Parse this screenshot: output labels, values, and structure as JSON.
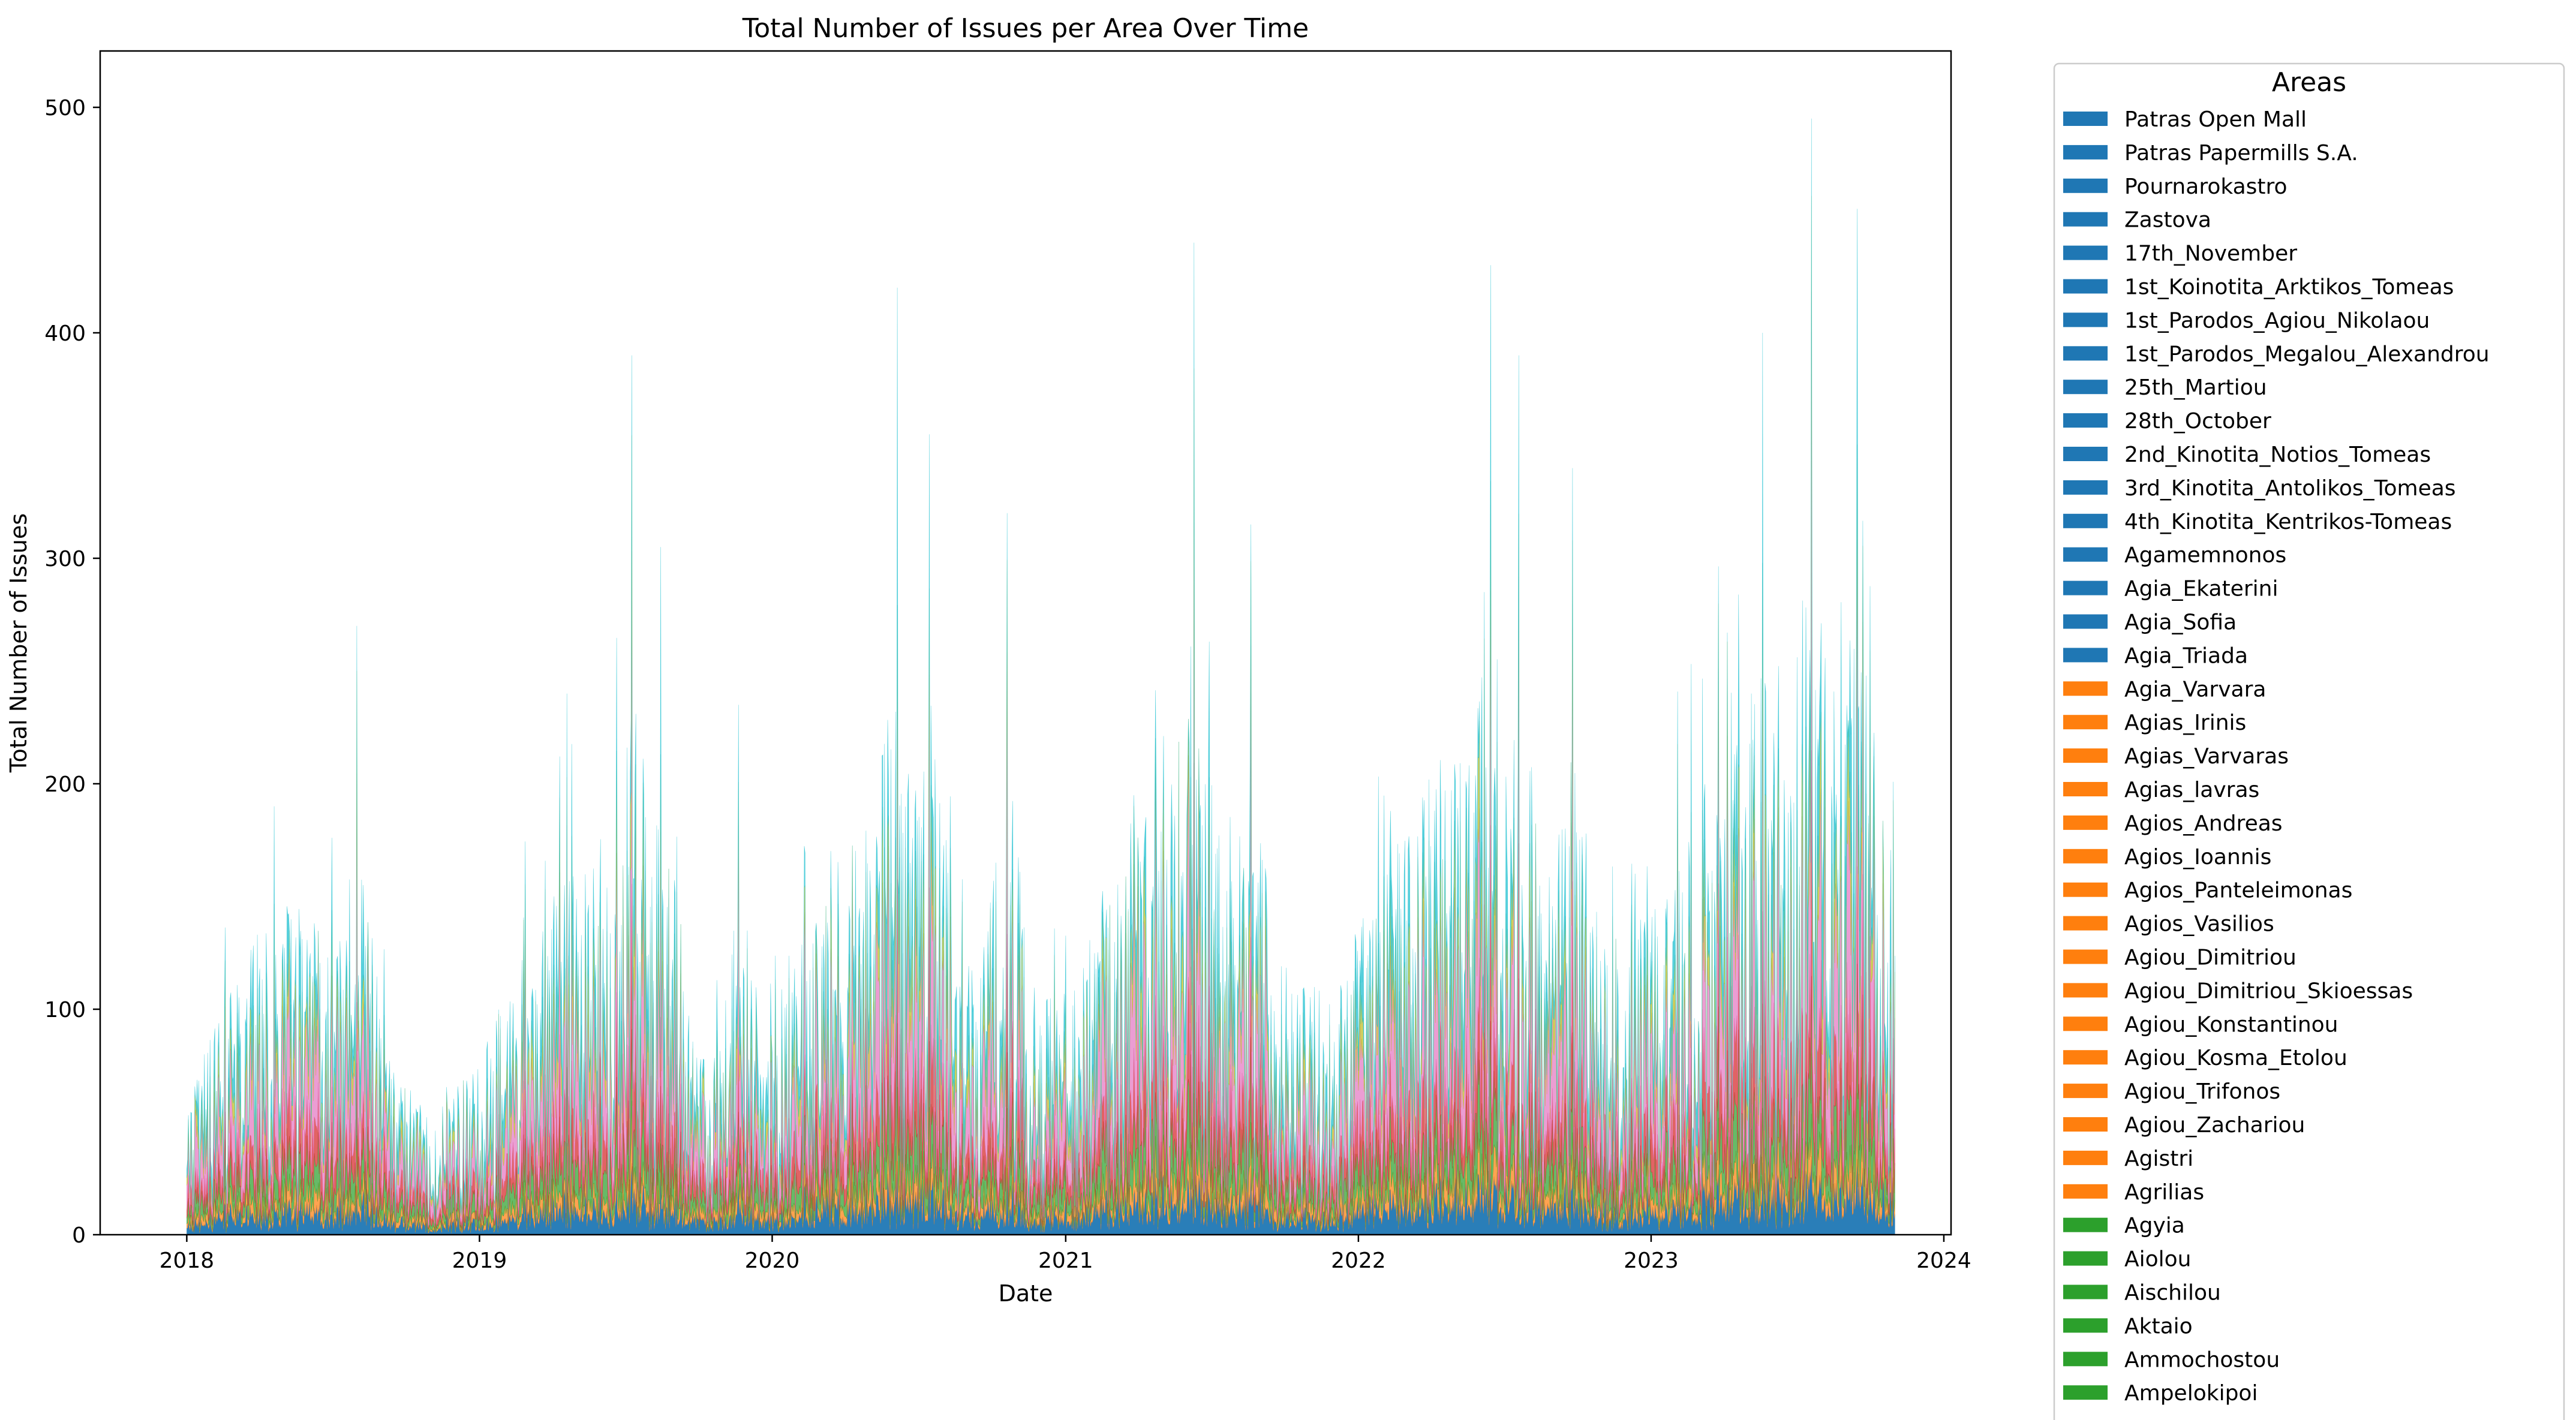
{
  "chart_data": {
    "type": "area",
    "title": "Total Number of Issues per Area Over Time",
    "xlabel": "Date",
    "ylabel": "Total Number of Issues",
    "x_range": [
      "2017-09-15",
      "2024-01-10"
    ],
    "data_range": [
      "2018-01-01",
      "2023-11-01"
    ],
    "x_ticks": [
      "2018",
      "2019",
      "2020",
      "2021",
      "2022",
      "2023",
      "2024"
    ],
    "ylim": [
      0,
      525
    ],
    "y_ticks": [
      0,
      100,
      200,
      300,
      400,
      500
    ],
    "grid": false,
    "legend": {
      "title": "Areas",
      "placement": "outside right",
      "entries": [
        {
          "name": " Patras Open Mall",
          "color": "#1f77b4"
        },
        {
          "name": " Patras Papermills S.A.",
          "color": "#1f77b4"
        },
        {
          "name": " Pournarokastro",
          "color": "#1f77b4"
        },
        {
          "name": " Zastova",
          "color": "#1f77b4"
        },
        {
          "name": "17th_November",
          "color": "#1f77b4"
        },
        {
          "name": "1st_Koinotita_Arktikos_Tomeas",
          "color": "#1f77b4"
        },
        {
          "name": "1st_Parodos_Agiou_Nikolaou",
          "color": "#1f77b4"
        },
        {
          "name": "1st_Parodos_Megalou_Alexandrou",
          "color": "#1f77b4"
        },
        {
          "name": "25th_Martiou",
          "color": "#1f77b4"
        },
        {
          "name": "28th_October",
          "color": "#1f77b4"
        },
        {
          "name": "2nd_Kinotita_Notios_Tomeas",
          "color": "#1f77b4"
        },
        {
          "name": "3rd_Kinotita_Antolikos_Tomeas",
          "color": "#1f77b4"
        },
        {
          "name": "4th_Kinotita_Kentrikos-Tomeas",
          "color": "#1f77b4"
        },
        {
          "name": "Agamemnonos",
          "color": "#1f77b4"
        },
        {
          "name": "Agia_Ekaterini",
          "color": "#1f77b4"
        },
        {
          "name": "Agia_Sofia",
          "color": "#1f77b4"
        },
        {
          "name": "Agia_Triada",
          "color": "#1f77b4"
        },
        {
          "name": "Agia_Varvara",
          "color": "#ff7f0e"
        },
        {
          "name": "Agias_Irinis",
          "color": "#ff7f0e"
        },
        {
          "name": "Agias_Varvaras",
          "color": "#ff7f0e"
        },
        {
          "name": "Agias_lavras",
          "color": "#ff7f0e"
        },
        {
          "name": "Agios_Andreas",
          "color": "#ff7f0e"
        },
        {
          "name": "Agios_Ioannis",
          "color": "#ff7f0e"
        },
        {
          "name": "Agios_Panteleimonas",
          "color": "#ff7f0e"
        },
        {
          "name": "Agios_Vasilios",
          "color": "#ff7f0e"
        },
        {
          "name": "Agiou_Dimitriou",
          "color": "#ff7f0e"
        },
        {
          "name": "Agiou_Dimitriou_Skioessas",
          "color": "#ff7f0e"
        },
        {
          "name": "Agiou_Konstantinou",
          "color": "#ff7f0e"
        },
        {
          "name": "Agiou_Kosma_Etolou",
          "color": "#ff7f0e"
        },
        {
          "name": "Agiou_Trifonos",
          "color": "#ff7f0e"
        },
        {
          "name": "Agiou_Zachariou",
          "color": "#ff7f0e"
        },
        {
          "name": "Agistri",
          "color": "#ff7f0e"
        },
        {
          "name": "Agrilias",
          "color": "#ff7f0e"
        },
        {
          "name": "Agyia",
          "color": "#2ca02c"
        },
        {
          "name": "Aiolou",
          "color": "#2ca02c"
        },
        {
          "name": "Aischilou",
          "color": "#2ca02c"
        },
        {
          "name": "Aktaio",
          "color": "#2ca02c"
        },
        {
          "name": "Ammochostou",
          "color": "#2ca02c"
        },
        {
          "name": "Ampelokipoi",
          "color": "#2ca02c"
        }
      ]
    },
    "series_groups": [
      {
        "color": "#1f77b4",
        "share": 0.1
      },
      {
        "color": "#ff7f0e",
        "share": 0.06
      },
      {
        "color": "#2ca02c",
        "share": 0.12
      },
      {
        "color": "#d62728",
        "share": 0.14
      },
      {
        "color": "#e377c2",
        "share": 0.3
      },
      {
        "color": "#bcbd22",
        "share": 0.12
      },
      {
        "color": "#17becf",
        "share": 0.16
      }
    ],
    "peaks": [
      {
        "date": "2018-04-20",
        "value": 190
      },
      {
        "date": "2018-08-01",
        "value": 270
      },
      {
        "date": "2019-04-20",
        "value": 240
      },
      {
        "date": "2019-07-10",
        "value": 390
      },
      {
        "date": "2019-08-15",
        "value": 305
      },
      {
        "date": "2019-11-20",
        "value": 235
      },
      {
        "date": "2020-06-05",
        "value": 420
      },
      {
        "date": "2020-07-15",
        "value": 355
      },
      {
        "date": "2020-10-20",
        "value": 320
      },
      {
        "date": "2021-06-10",
        "value": 440
      },
      {
        "date": "2021-08-20",
        "value": 315
      },
      {
        "date": "2022-06-15",
        "value": 430
      },
      {
        "date": "2022-07-20",
        "value": 390
      },
      {
        "date": "2022-09-25",
        "value": 340
      },
      {
        "date": "2023-05-20",
        "value": 400
      },
      {
        "date": "2023-07-20",
        "value": 495
      },
      {
        "date": "2023-09-15",
        "value": 455
      }
    ]
  }
}
